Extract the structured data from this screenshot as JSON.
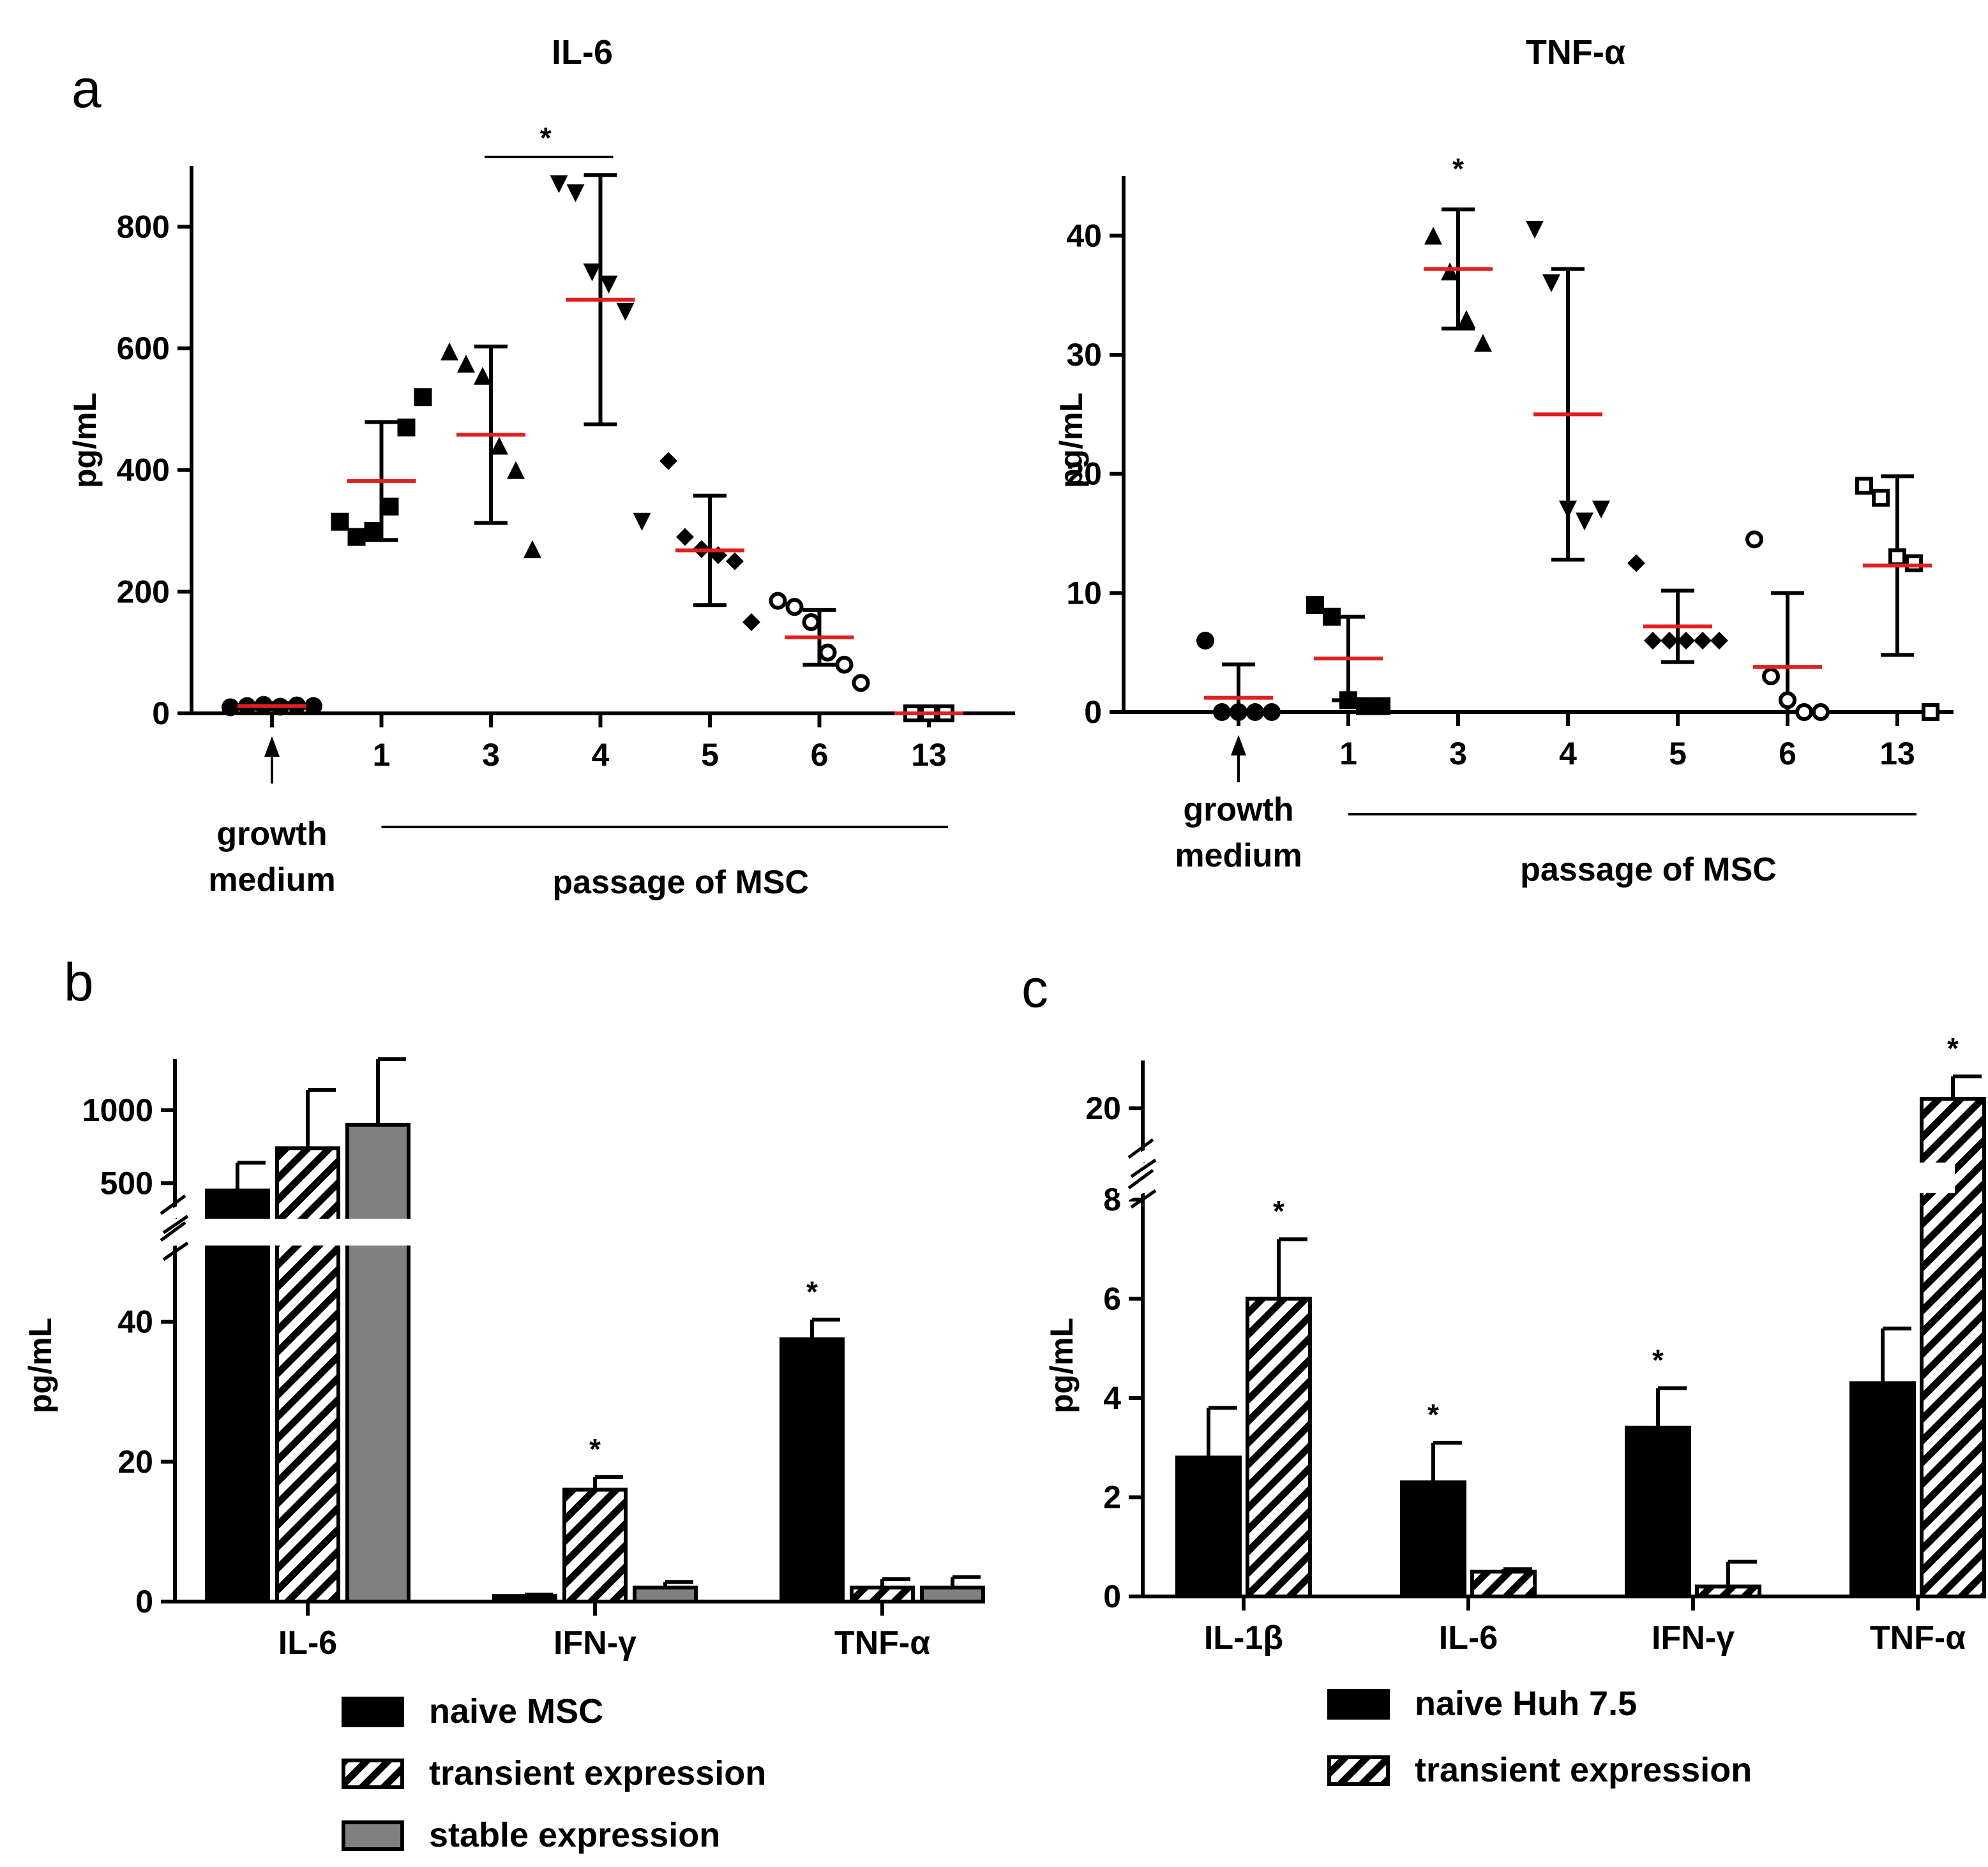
{
  "panel_letters": [
    "a",
    "b",
    "c"
  ],
  "colors": {
    "mean": "#e02020",
    "ink": "#000000",
    "stable": "#808080"
  },
  "chart_data": [
    {
      "id": "a_il6",
      "type": "scatter",
      "title": "IL-6",
      "ylabel": "pg/mL",
      "ylim": [
        0,
        900
      ],
      "yticks": [
        0,
        200,
        400,
        600,
        800
      ],
      "categories": [
        "",
        "1",
        "3",
        "4",
        "5",
        "6",
        "13"
      ],
      "markers": [
        "circle",
        "square",
        "triangle-up",
        "triangle-down",
        "diamond",
        "open-circle",
        "open-square"
      ],
      "points": [
        [
          10,
          12,
          14,
          11,
          13,
          12
        ],
        [
          315,
          290,
          300,
          340,
          470,
          520
        ],
        [
          595,
          575,
          555,
          440,
          400,
          270
        ],
        [
          870,
          855,
          725,
          705,
          660,
          315
        ],
        [
          415,
          290,
          270,
          260,
          250,
          150
        ],
        [
          185,
          175,
          150,
          100,
          80,
          50
        ],
        [
          0,
          0,
          0
        ]
      ],
      "mean": [
        12,
        382,
        458,
        680,
        268,
        125,
        0
      ],
      "sd": [
        5,
        97,
        145,
        205,
        90,
        45,
        0
      ],
      "group_label": "growth medium",
      "passage_label": "passage of MSC",
      "significance": [
        {
          "type": "bracket",
          "from": 2,
          "to": 3,
          "label": "*"
        }
      ]
    },
    {
      "id": "a_tnf",
      "type": "scatter",
      "title": "TNF-α",
      "ylabel": "pg/mL",
      "ylim": [
        0,
        45
      ],
      "yticks": [
        0,
        10,
        20,
        30,
        40
      ],
      "categories": [
        "",
        "1",
        "3",
        "4",
        "5",
        "6",
        "13"
      ],
      "markers": [
        "circle",
        "square",
        "triangle-up",
        "triangle-down",
        "diamond",
        "open-circle",
        "open-square"
      ],
      "points": [
        [
          6,
          0,
          0,
          0,
          0
        ],
        [
          9,
          8,
          1,
          0.5,
          0.5
        ],
        [
          40,
          37,
          33,
          31
        ],
        [
          40.5,
          36,
          17,
          16,
          17
        ],
        [
          12.5,
          6,
          6,
          6,
          6,
          6
        ],
        [
          14.5,
          3,
          1,
          0,
          0
        ],
        [
          19,
          18,
          13,
          12.5,
          0
        ]
      ],
      "mean": [
        1.2,
        4.5,
        37.2,
        25,
        7.2,
        3.8,
        12.3
      ],
      "sd": [
        2.8,
        3.5,
        5,
        12.2,
        3,
        6.2,
        7.5
      ],
      "group_label": "growth medium",
      "passage_label": "passage of MSC",
      "significance": [
        {
          "type": "star",
          "at": 2,
          "label": "*"
        }
      ]
    },
    {
      "id": "b",
      "type": "bar",
      "ylabel": "pg/mL",
      "categories": [
        "IL-6",
        "IFN-γ",
        "TNF-α"
      ],
      "lower_yticks": [
        0,
        20,
        40
      ],
      "lower_ylim": [
        0,
        50
      ],
      "upper_yticks": [
        500,
        1000
      ],
      "upper_ylim": [
        300,
        1350
      ],
      "series": [
        {
          "name": "naive MSC",
          "pattern": "solid",
          "values": [
            450,
            0.8,
            37.5
          ],
          "err": [
            190,
            0.2,
            2.8
          ]
        },
        {
          "name": "transient expression",
          "pattern": "hatch",
          "values": [
            740,
            16,
            2
          ],
          "err": [
            400,
            1.8,
            1.2
          ]
        },
        {
          "name": "stable expression",
          "pattern": "gray",
          "values": [
            900,
            2,
            2
          ],
          "err": [
            490,
            0.8,
            1.5
          ]
        }
      ],
      "significance": [
        {
          "category": 1,
          "series": 1,
          "label": "*"
        },
        {
          "category": 2,
          "series": 0,
          "label": "*"
        }
      ]
    },
    {
      "id": "c",
      "type": "bar",
      "ylabel": "pg/mL",
      "categories": [
        "IL-1β",
        "IL-6",
        "IFN-γ",
        "TNF-α"
      ],
      "lower_yticks": [
        0,
        2,
        4,
        6,
        8
      ],
      "lower_ylim": [
        0,
        8
      ],
      "upper_yticks": [
        20
      ],
      "upper_ylim": [
        18.5,
        21.5
      ],
      "series": [
        {
          "name": "naive Huh 7.5",
          "pattern": "solid",
          "values": [
            2.8,
            2.3,
            3.4,
            4.3
          ],
          "err": [
            1.0,
            0.8,
            0.8,
            1.1
          ]
        },
        {
          "name": "transient expression",
          "pattern": "hatch",
          "values": [
            6.0,
            0.5,
            0.2,
            20.3
          ],
          "err": [
            1.2,
            0.05,
            0.5,
            0.7
          ]
        }
      ],
      "significance": [
        {
          "category": 0,
          "series": 1,
          "label": "*"
        },
        {
          "category": 1,
          "series": 0,
          "label": "*"
        },
        {
          "category": 2,
          "series": 0,
          "label": "*"
        },
        {
          "category": 3,
          "series": 1,
          "label": "*"
        }
      ]
    }
  ]
}
